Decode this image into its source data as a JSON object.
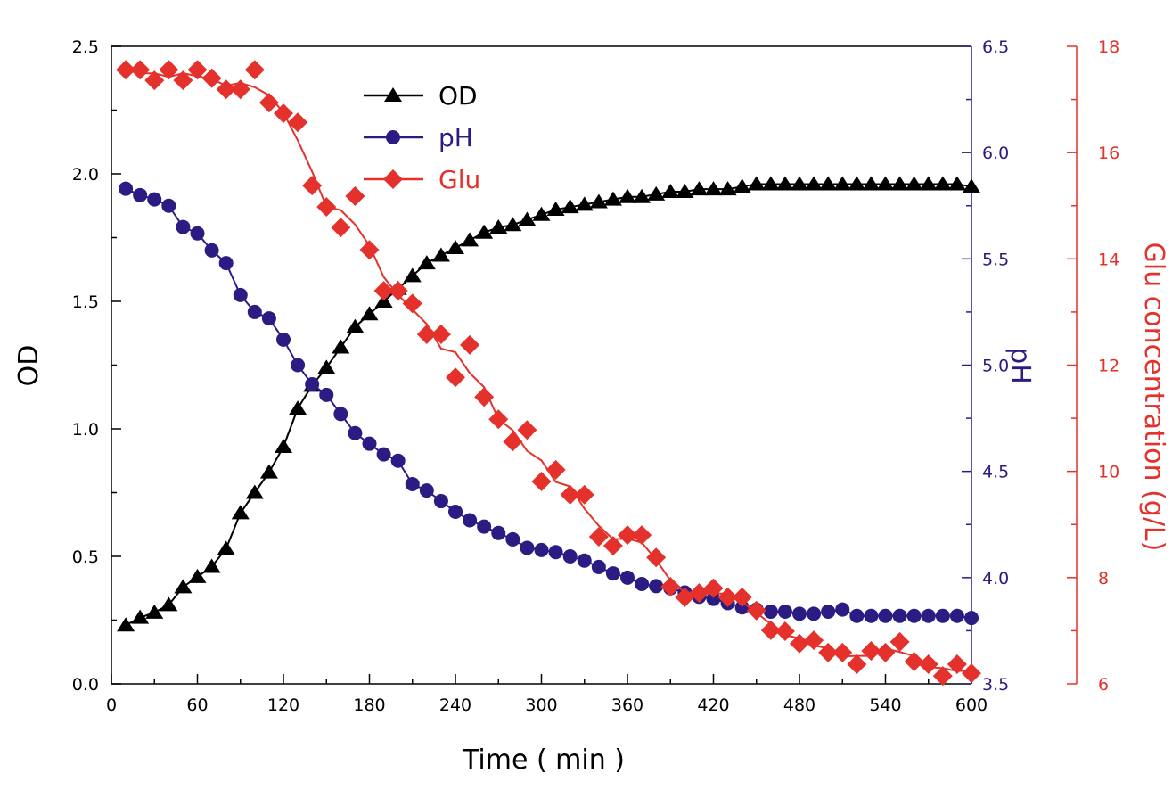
{
  "chart_data": {
    "type": "line",
    "title": "",
    "xlabel": "Time ( min )",
    "xlim": [
      0,
      600
    ],
    "xticks": [
      0,
      60,
      120,
      180,
      240,
      300,
      360,
      420,
      480,
      540,
      600
    ],
    "axes": {
      "od": {
        "label": "OD",
        "lim": [
          0,
          2.5
        ],
        "ticks": [
          "0.0",
          "0.5",
          "1.0",
          "1.5",
          "2.0",
          "2.5"
        ],
        "side": "left",
        "color": "#000000"
      },
      "ph": {
        "label": "pH",
        "lim": [
          3.5,
          6.5
        ],
        "ticks": [
          "3.5",
          "4.0",
          "4.5",
          "5.0",
          "5.5",
          "6.0",
          "6.5"
        ],
        "side": "right",
        "color": "#2b1c84"
      },
      "glu": {
        "label": "Glu concentration (g/L)",
        "lim": [
          6,
          18
        ],
        "ticks": [
          "6",
          "8",
          "10",
          "12",
          "14",
          "16",
          "18"
        ],
        "side": "right-outer",
        "color": "#e4312b"
      }
    },
    "legend": {
      "placement": "top-center",
      "entries": [
        "OD",
        "pH",
        "Glu"
      ]
    },
    "grid": false,
    "x": [
      10,
      20,
      30,
      40,
      50,
      60,
      70,
      80,
      90,
      100,
      110,
      120,
      130,
      140,
      150,
      160,
      170,
      180,
      190,
      200,
      210,
      220,
      230,
      240,
      250,
      260,
      270,
      280,
      290,
      300,
      310,
      320,
      330,
      340,
      350,
      360,
      370,
      380,
      390,
      400,
      410,
      420,
      430,
      440,
      450,
      460,
      470,
      480,
      490,
      500,
      510,
      520,
      530,
      540,
      550,
      560,
      570,
      580,
      590,
      600
    ],
    "series": [
      {
        "name": "OD",
        "axis": "od",
        "marker": "triangle",
        "color": "#000000",
        "values": [
          0.23,
          0.26,
          0.28,
          0.31,
          0.38,
          0.42,
          0.46,
          0.53,
          0.67,
          0.75,
          0.83,
          0.93,
          1.08,
          1.17,
          1.24,
          1.32,
          1.4,
          1.45,
          1.5,
          1.55,
          1.6,
          1.65,
          1.68,
          1.71,
          1.74,
          1.77,
          1.79,
          1.8,
          1.82,
          1.84,
          1.86,
          1.87,
          1.88,
          1.89,
          1.9,
          1.91,
          1.91,
          1.92,
          1.93,
          1.93,
          1.94,
          1.94,
          1.94,
          1.95,
          1.96,
          1.96,
          1.96,
          1.96,
          1.96,
          1.96,
          1.96,
          1.96,
          1.96,
          1.96,
          1.96,
          1.96,
          1.96,
          1.96,
          1.96,
          1.95
        ]
      },
      {
        "name": "pH",
        "axis": "ph",
        "marker": "circle",
        "color": "#2b1c84",
        "values": [
          5.83,
          5.8,
          5.78,
          5.75,
          5.65,
          5.62,
          5.54,
          5.48,
          5.33,
          5.25,
          5.22,
          5.12,
          5.0,
          4.91,
          4.86,
          4.77,
          4.68,
          4.63,
          4.58,
          4.55,
          4.44,
          4.41,
          4.36,
          4.31,
          4.27,
          4.24,
          4.21,
          4.18,
          4.14,
          4.13,
          4.12,
          4.1,
          4.08,
          4.05,
          4.02,
          4.0,
          3.97,
          3.96,
          3.95,
          3.93,
          3.91,
          3.9,
          3.88,
          3.86,
          3.85,
          3.84,
          3.84,
          3.83,
          3.83,
          3.84,
          3.85,
          3.82,
          3.82,
          3.82,
          3.82,
          3.82,
          3.82,
          3.82,
          3.82,
          3.81
        ]
      },
      {
        "name": "Glu",
        "axis": "glu",
        "marker": "diamond",
        "color": "#e4312b",
        "values": [
          17.56,
          17.56,
          17.36,
          17.56,
          17.36,
          17.56,
          17.4,
          17.19,
          17.19,
          17.56,
          16.94,
          16.74,
          16.57,
          15.38,
          14.98,
          14.59,
          15.18,
          14.17,
          13.4,
          13.4,
          13.16,
          12.58,
          12.58,
          11.77,
          12.38,
          11.4,
          10.98,
          10.56,
          10.78,
          9.81,
          10.03,
          9.56,
          9.56,
          8.77,
          8.6,
          8.8,
          8.8,
          8.38,
          7.83,
          7.63,
          7.71,
          7.8,
          7.63,
          7.63,
          7.38,
          7.01,
          6.99,
          6.76,
          6.82,
          6.59,
          6.59,
          6.37,
          6.62,
          6.59,
          6.79,
          6.42,
          6.37,
          6.15,
          6.37,
          6.2
        ]
      }
    ]
  }
}
